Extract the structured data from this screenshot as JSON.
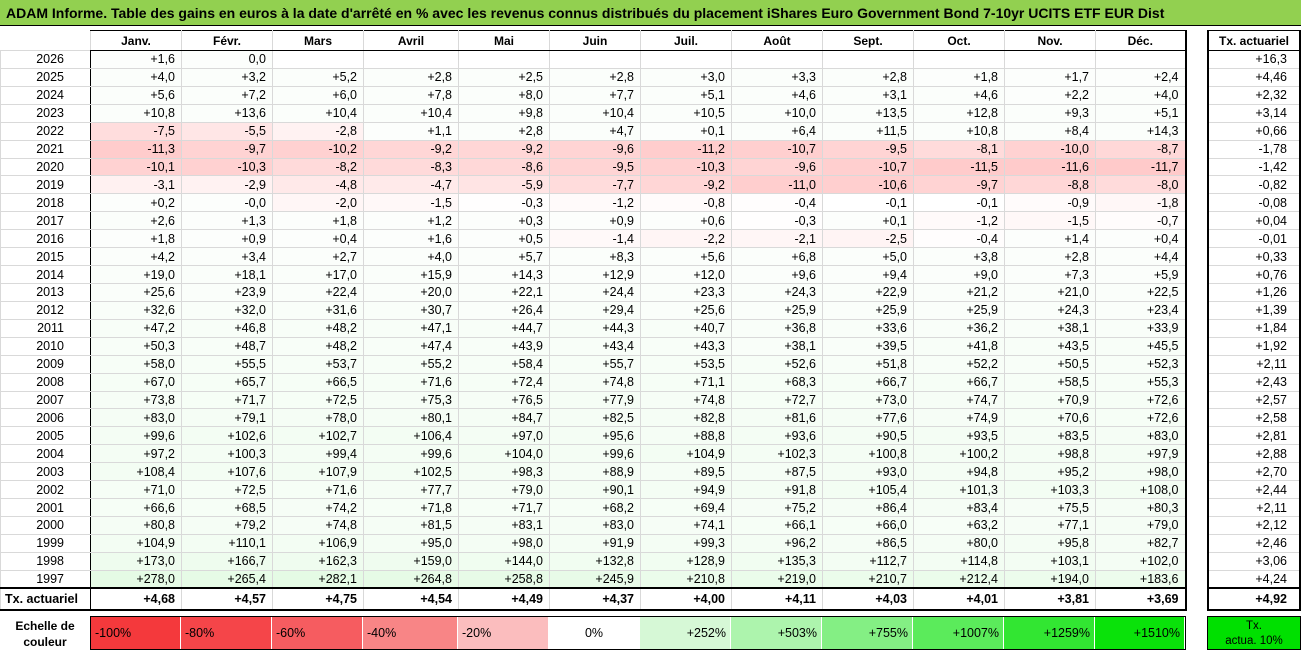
{
  "title": "ADAM Informe. Table des gains en euros à la date d'arrêté en % avec les revenus connus distribués du placement iShares Euro Government Bond 7-10yr UCITS ETF EUR Dist",
  "months": [
    "Janv.",
    "Févr.",
    "Mars",
    "Avril",
    "Mai",
    "Juin",
    "Juil.",
    "Août",
    "Sept.",
    "Oct.",
    "Nov.",
    "Déc."
  ],
  "side_header": "Tx. actuariel",
  "rows": [
    {
      "year": "2026",
      "values": [
        "+1,6",
        "0,0",
        "",
        "",
        "",
        "",
        "",
        "",
        "",
        "",
        "",
        ""
      ],
      "rate": "+16,3"
    },
    {
      "year": "2025",
      "values": [
        "+4,0",
        "+3,2",
        "+5,2",
        "+2,8",
        "+2,5",
        "+2,8",
        "+3,0",
        "+3,3",
        "+2,8",
        "+1,8",
        "+1,7",
        "+2,4"
      ],
      "rate": "+4,46"
    },
    {
      "year": "2024",
      "values": [
        "+5,6",
        "+7,2",
        "+6,0",
        "+7,8",
        "+8,0",
        "+7,7",
        "+5,1",
        "+4,6",
        "+3,1",
        "+4,6",
        "+2,2",
        "+4,0"
      ],
      "rate": "+2,32"
    },
    {
      "year": "2023",
      "values": [
        "+10,8",
        "+13,6",
        "+10,4",
        "+10,4",
        "+9,8",
        "+10,4",
        "+10,5",
        "+10,0",
        "+13,5",
        "+12,8",
        "+9,3",
        "+5,1"
      ],
      "rate": "+3,14"
    },
    {
      "year": "2022",
      "values": [
        "-7,5",
        "-5,5",
        "-2,8",
        "+1,1",
        "+2,8",
        "+4,7",
        "+0,1",
        "+6,4",
        "+11,5",
        "+10,8",
        "+8,4",
        "+14,3"
      ],
      "rate": "+0,66"
    },
    {
      "year": "2021",
      "values": [
        "-11,3",
        "-9,7",
        "-10,2",
        "-9,2",
        "-9,2",
        "-9,6",
        "-11,2",
        "-10,7",
        "-9,5",
        "-8,1",
        "-10,0",
        "-8,7"
      ],
      "rate": "-1,78"
    },
    {
      "year": "2020",
      "values": [
        "-10,1",
        "-10,3",
        "-8,2",
        "-8,3",
        "-8,6",
        "-9,5",
        "-10,3",
        "-9,6",
        "-10,7",
        "-11,5",
        "-11,6",
        "-11,7"
      ],
      "rate": "-1,42"
    },
    {
      "year": "2019",
      "values": [
        "-3,1",
        "-2,9",
        "-4,8",
        "-4,7",
        "-5,9",
        "-7,7",
        "-9,2",
        "-11,0",
        "-10,6",
        "-9,7",
        "-8,8",
        "-8,0"
      ],
      "rate": "-0,82"
    },
    {
      "year": "2018",
      "values": [
        "+0,2",
        "-0,0",
        "-2,0",
        "-1,5",
        "-0,3",
        "-1,2",
        "-0,8",
        "-0,4",
        "-0,1",
        "-0,1",
        "-0,9",
        "-1,8"
      ],
      "rate": "-0,08"
    },
    {
      "year": "2017",
      "values": [
        "+2,6",
        "+1,3",
        "+1,8",
        "+1,2",
        "+0,3",
        "+0,9",
        "+0,6",
        "-0,3",
        "+0,1",
        "-1,2",
        "-1,5",
        "-0,7"
      ],
      "rate": "+0,04"
    },
    {
      "year": "2016",
      "values": [
        "+1,8",
        "+0,9",
        "+0,4",
        "+1,6",
        "+0,5",
        "-1,4",
        "-2,2",
        "-2,1",
        "-2,5",
        "-0,4",
        "+1,4",
        "+0,4"
      ],
      "rate": "-0,01"
    },
    {
      "year": "2015",
      "values": [
        "+4,2",
        "+3,4",
        "+2,7",
        "+4,0",
        "+5,7",
        "+8,3",
        "+5,6",
        "+6,8",
        "+5,0",
        "+3,8",
        "+2,8",
        "+4,4"
      ],
      "rate": "+0,33"
    },
    {
      "year": "2014",
      "values": [
        "+19,0",
        "+18,1",
        "+17,0",
        "+15,9",
        "+14,3",
        "+12,9",
        "+12,0",
        "+9,6",
        "+9,4",
        "+9,0",
        "+7,3",
        "+5,9"
      ],
      "rate": "+0,76"
    },
    {
      "year": "2013",
      "values": [
        "+25,6",
        "+23,9",
        "+22,4",
        "+20,0",
        "+22,1",
        "+24,4",
        "+23,3",
        "+24,3",
        "+22,9",
        "+21,2",
        "+21,0",
        "+22,5"
      ],
      "rate": "+1,26"
    },
    {
      "year": "2012",
      "values": [
        "+32,6",
        "+32,0",
        "+31,6",
        "+30,7",
        "+26,4",
        "+29,4",
        "+25,6",
        "+25,9",
        "+25,9",
        "+25,9",
        "+24,3",
        "+23,4"
      ],
      "rate": "+1,39"
    },
    {
      "year": "2011",
      "values": [
        "+47,2",
        "+46,8",
        "+48,2",
        "+47,1",
        "+44,7",
        "+44,3",
        "+40,7",
        "+36,8",
        "+33,6",
        "+36,2",
        "+38,1",
        "+33,9"
      ],
      "rate": "+1,84"
    },
    {
      "year": "2010",
      "values": [
        "+50,3",
        "+48,7",
        "+48,2",
        "+47,4",
        "+43,9",
        "+43,4",
        "+43,3",
        "+38,1",
        "+39,5",
        "+41,8",
        "+43,5",
        "+45,5"
      ],
      "rate": "+1,92"
    },
    {
      "year": "2009",
      "values": [
        "+58,0",
        "+55,5",
        "+53,7",
        "+55,2",
        "+58,4",
        "+55,7",
        "+53,5",
        "+52,6",
        "+51,8",
        "+52,2",
        "+50,5",
        "+52,3"
      ],
      "rate": "+2,11"
    },
    {
      "year": "2008",
      "values": [
        "+67,0",
        "+65,7",
        "+66,5",
        "+71,6",
        "+72,4",
        "+74,8",
        "+71,1",
        "+68,3",
        "+66,7",
        "+66,7",
        "+58,5",
        "+55,3"
      ],
      "rate": "+2,43"
    },
    {
      "year": "2007",
      "values": [
        "+73,8",
        "+71,7",
        "+72,5",
        "+75,3",
        "+76,5",
        "+77,9",
        "+74,8",
        "+72,7",
        "+73,0",
        "+74,7",
        "+70,9",
        "+72,6"
      ],
      "rate": "+2,57"
    },
    {
      "year": "2006",
      "values": [
        "+83,0",
        "+79,1",
        "+78,0",
        "+80,1",
        "+84,7",
        "+82,5",
        "+82,8",
        "+81,6",
        "+77,6",
        "+74,9",
        "+70,6",
        "+72,6"
      ],
      "rate": "+2,58"
    },
    {
      "year": "2005",
      "values": [
        "+99,6",
        "+102,6",
        "+102,7",
        "+106,4",
        "+97,0",
        "+95,6",
        "+88,8",
        "+93,6",
        "+90,5",
        "+93,5",
        "+83,5",
        "+83,0"
      ],
      "rate": "+2,81"
    },
    {
      "year": "2004",
      "values": [
        "+97,2",
        "+100,3",
        "+99,4",
        "+99,6",
        "+104,0",
        "+99,6",
        "+104,9",
        "+102,3",
        "+100,8",
        "+100,2",
        "+98,8",
        "+97,9"
      ],
      "rate": "+2,88"
    },
    {
      "year": "2003",
      "values": [
        "+108,4",
        "+107,6",
        "+107,9",
        "+102,5",
        "+98,3",
        "+88,9",
        "+89,5",
        "+87,5",
        "+93,0",
        "+94,8",
        "+95,2",
        "+98,0"
      ],
      "rate": "+2,70"
    },
    {
      "year": "2002",
      "values": [
        "+71,0",
        "+72,5",
        "+71,6",
        "+77,7",
        "+79,0",
        "+90,1",
        "+94,9",
        "+91,8",
        "+105,4",
        "+101,3",
        "+103,3",
        "+108,0"
      ],
      "rate": "+2,44"
    },
    {
      "year": "2001",
      "values": [
        "+66,6",
        "+68,5",
        "+74,2",
        "+71,8",
        "+71,7",
        "+68,2",
        "+69,4",
        "+75,2",
        "+86,4",
        "+83,4",
        "+75,5",
        "+80,3"
      ],
      "rate": "+2,11"
    },
    {
      "year": "2000",
      "values": [
        "+80,8",
        "+79,2",
        "+74,8",
        "+81,5",
        "+83,1",
        "+83,0",
        "+74,1",
        "+66,1",
        "+66,0",
        "+63,2",
        "+77,1",
        "+79,0"
      ],
      "rate": "+2,12"
    },
    {
      "year": "1999",
      "values": [
        "+104,9",
        "+110,1",
        "+106,9",
        "+95,0",
        "+98,0",
        "+91,9",
        "+99,3",
        "+96,2",
        "+86,5",
        "+80,0",
        "+95,8",
        "+82,7"
      ],
      "rate": "+2,46"
    },
    {
      "year": "1998",
      "values": [
        "+173,0",
        "+166,7",
        "+162,3",
        "+159,0",
        "+144,0",
        "+132,8",
        "+128,9",
        "+135,3",
        "+112,7",
        "+114,8",
        "+103,1",
        "+102,0"
      ],
      "rate": "+3,06"
    },
    {
      "year": "1997",
      "values": [
        "+278,0",
        "+265,4",
        "+282,1",
        "+264,8",
        "+258,8",
        "+245,9",
        "+210,8",
        "+219,0",
        "+210,7",
        "+212,4",
        "+194,0",
        "+183,6"
      ],
      "rate": "+4,24"
    }
  ],
  "footer": {
    "label": "Tx. actuariel",
    "values": [
      "+4,68",
      "+4,57",
      "+4,75",
      "+4,54",
      "+4,49",
      "+4,37",
      "+4,00",
      "+4,11",
      "+4,03",
      "+4,01",
      "+3,81",
      "+3,69"
    ],
    "rate": "+4,92"
  },
  "legend": {
    "label_line1": "Echelle de",
    "label_line2": "couleur",
    "cells": [
      {
        "text": "-100%",
        "color": "#f4393c",
        "kind": "neg"
      },
      {
        "text": "-80%",
        "color": "#f54549",
        "kind": "neg"
      },
      {
        "text": "-60%",
        "color": "#f65c60",
        "kind": "neg"
      },
      {
        "text": "-40%",
        "color": "#f88586",
        "kind": "neg"
      },
      {
        "text": "-20%",
        "color": "#fbbdbe",
        "kind": "neg"
      },
      {
        "text": "0%",
        "color": "#ffffff",
        "kind": "zero"
      },
      {
        "text": "+252%",
        "color": "#d6f8d6",
        "kind": "pos"
      },
      {
        "text": "+503%",
        "color": "#adf4ad",
        "kind": "pos"
      },
      {
        "text": "+755%",
        "color": "#84ef84",
        "kind": "pos"
      },
      {
        "text": "+1007%",
        "color": "#5beb5b",
        "kind": "pos"
      },
      {
        "text": "+1259%",
        "color": "#32e632",
        "kind": "pos"
      },
      {
        "text": "+1510%",
        "color": "#0ae20a",
        "kind": "pos"
      }
    ],
    "side_line1": "Tx.",
    "side_line2": "actua. 10%",
    "side_color": "#00e000"
  }
}
